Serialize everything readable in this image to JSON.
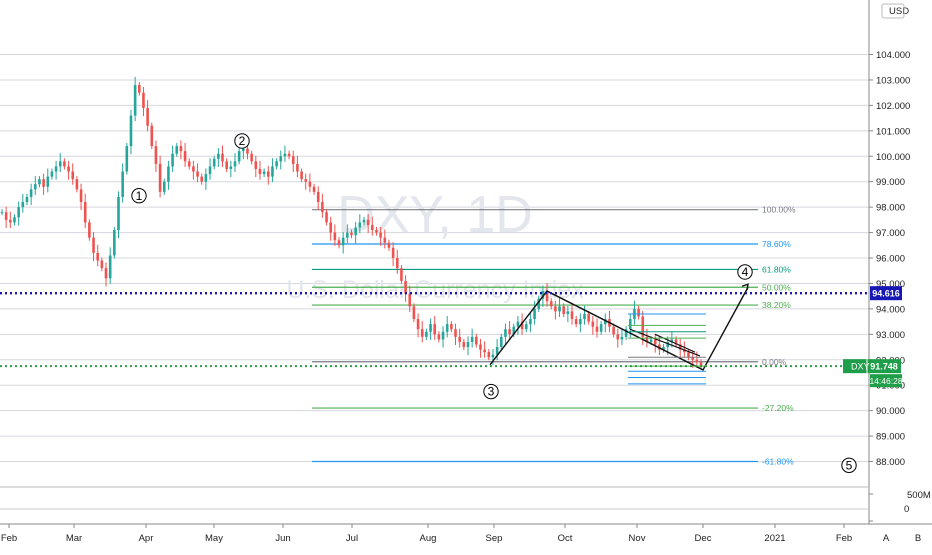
{
  "chart_data": {
    "type": "candlestick",
    "symbol": "DXY",
    "timeframe": "1D",
    "watermark_name": "U.S. Dollar Currency Index",
    "currency_label": "USD",
    "ylim": [
      87.0,
      104.5
    ],
    "yticks": [
      {
        "value": 104,
        "label": "104.000"
      },
      {
        "value": 103,
        "label": "103.000"
      },
      {
        "value": 102,
        "label": "102.000"
      },
      {
        "value": 101,
        "label": "101.000"
      },
      {
        "value": 100,
        "label": "100.000"
      },
      {
        "value": 99,
        "label": "99.000"
      },
      {
        "value": 98,
        "label": "98.000"
      },
      {
        "value": 97,
        "label": "97.000"
      },
      {
        "value": 96,
        "label": "96.000"
      },
      {
        "value": 95,
        "label": "95.000"
      },
      {
        "value": 94,
        "label": "94.000"
      },
      {
        "value": 93,
        "label": "93.000"
      },
      {
        "value": 92,
        "label": "92.000"
      },
      {
        "value": 91,
        "label": "91.000"
      },
      {
        "value": 90,
        "label": "90.000"
      },
      {
        "value": 89,
        "label": "89.000"
      },
      {
        "value": 88,
        "label": "88.000"
      }
    ],
    "xticks": [
      "Feb",
      "Mar",
      "Apr",
      "May",
      "Jun",
      "Jul",
      "Aug",
      "Sep",
      "Oct",
      "Nov",
      "Dec",
      "2021",
      "Feb"
    ],
    "volume_ticks": [
      "500M",
      "0"
    ],
    "price_series": [
      97.8,
      97.5,
      97.4,
      97.6,
      98.0,
      98.2,
      98.4,
      98.7,
      98.9,
      99.1,
      98.8,
      99.2,
      99.4,
      99.6,
      99.8,
      99.6,
      99.4,
      99.1,
      98.7,
      98.2,
      97.4,
      96.8,
      96.2,
      95.9,
      95.6,
      95.2,
      96.1,
      97.1,
      98.4,
      99.4,
      100.4,
      101.6,
      102.8,
      102.5,
      101.9,
      101.2,
      100.4,
      99.7,
      98.6,
      99.0,
      99.6,
      100.1,
      100.4,
      100.2,
      99.8,
      99.6,
      99.4,
      99.2,
      99.0,
      99.3,
      99.6,
      99.9,
      100.1,
      99.8,
      99.5,
      99.6,
      99.8,
      100.2,
      100.3,
      100.1,
      99.8,
      99.5,
      99.3,
      99.4,
      99.2,
      99.6,
      99.8,
      100.0,
      100.1,
      100.0,
      99.7,
      99.4,
      99.1,
      99.0,
      98.8,
      98.6,
      98.2,
      97.8,
      97.4,
      97.0,
      96.7,
      96.5,
      96.8,
      97.0,
      96.9,
      97.2,
      97.4,
      97.5,
      97.3,
      97.1,
      97.0,
      96.8,
      96.6,
      96.4,
      96.0,
      95.6,
      95.1,
      94.6,
      94.1,
      93.6,
      93.2,
      92.9,
      93.1,
      93.4,
      93.0,
      92.8,
      93.1,
      93.4,
      93.2,
      92.9,
      92.7,
      92.5,
      92.7,
      92.9,
      92.6,
      92.4,
      92.3,
      92.1,
      92.2,
      92.5,
      92.9,
      93.2,
      93.0,
      93.3,
      93.5,
      93.2,
      93.4,
      93.6,
      94.0,
      94.4,
      94.7,
      94.3,
      94.1,
      93.9,
      94.1,
      93.8,
      93.9,
      93.6,
      93.4,
      93.6,
      93.8,
      93.5,
      93.3,
      93.1,
      93.4,
      93.6,
      93.3,
      93.0,
      92.8,
      92.9,
      93.2,
      93.6,
      94.0,
      93.7,
      92.9,
      92.7,
      92.8,
      92.6,
      92.4,
      92.5,
      92.7,
      92.8,
      92.6,
      92.4,
      92.3,
      92.1,
      92.0,
      91.9,
      91.75
    ],
    "fib_levels": [
      {
        "label": "100.00%",
        "value": 97.9
      },
      {
        "label": "78.60%",
        "value": 96.55
      },
      {
        "label": "61.80%",
        "value": 95.55
      },
      {
        "label": "50.00%",
        "value": 94.85
      },
      {
        "label": "38.20%",
        "value": 94.15
      },
      {
        "label": "0.00%",
        "value": 91.92
      },
      {
        "label": "-27.20%",
        "value": 90.1
      },
      {
        "label": "-61.80%",
        "value": 88.0
      }
    ],
    "wave_labels": [
      "1",
      "2",
      "3",
      "4",
      "5"
    ],
    "price_tags": {
      "level_value": "94.616",
      "current_symbol": "DXY",
      "current_value": "91.748",
      "countdown": "14:46:28"
    },
    "bottom_buttons": [
      "A",
      "B"
    ],
    "colors": {
      "up": "#26a69a",
      "down": "#ef5350",
      "fib_gray": "#787b86",
      "fib_blue": "#2196f3",
      "fib_green": "#4caf50",
      "fib_teal": "#089981",
      "blue_line": "#1717b6",
      "green_line": "#2e9e44"
    }
  }
}
